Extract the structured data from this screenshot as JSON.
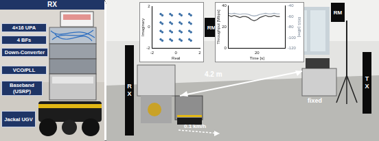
{
  "left_panel": {
    "title": "RX",
    "labels": [
      "4×16 UPA",
      "4 BFs",
      "Down-Converter",
      "VCO/PLL",
      "Baseband (USRP)",
      "Jackal UGV"
    ]
  },
  "right_panel": {
    "rx": "RX",
    "tx": "TX",
    "rm": [
      "RM",
      "RM"
    ],
    "fixed": "fixed",
    "distance": "4.2 m",
    "speed": "0.1 km/h"
  },
  "chart_data": [
    {
      "type": "scatter",
      "x_label": "Real",
      "y_label": "Imaginary",
      "x": [
        -1.28,
        -1.14,
        -1.28,
        -1.14,
        -1.28,
        -1.14,
        -1.28,
        -1.14,
        -0.48,
        -0.34,
        -0.48,
        -0.34,
        -0.48,
        -0.34,
        -0.48,
        -0.34,
        0.32,
        0.46,
        0.32,
        0.46,
        0.32,
        0.46,
        0.32,
        0.46,
        1.12,
        1.26,
        1.12,
        1.26,
        1.12,
        1.26,
        1.12,
        1.26
      ],
      "values": [
        -1.15,
        -1.27,
        -0.35,
        -0.47,
        0.45,
        0.33,
        1.25,
        1.13,
        -1.15,
        -1.27,
        -0.35,
        -0.47,
        0.45,
        0.33,
        1.25,
        1.13,
        -1.15,
        -1.27,
        -0.35,
        -0.47,
        0.45,
        0.33,
        1.25,
        1.13,
        -1.15,
        -1.27,
        -0.35,
        -0.47,
        0.45,
        0.33,
        1.25,
        1.13
      ],
      "color": "#3a6ea5",
      "marker": "circle",
      "xlim": [
        -2,
        2
      ],
      "ylim": [
        -2,
        2
      ],
      "xticks": [
        -2,
        0,
        2
      ],
      "yticks": [
        -2,
        0,
        2
      ]
    },
    {
      "type": "line",
      "x_label": "Time [s]",
      "y_label": "Throughput [Mbps]",
      "y2_label": "RSS [dBm]",
      "x": [
        0,
        2,
        4,
        6,
        8,
        10,
        12,
        14,
        16,
        18,
        20,
        22,
        24,
        26,
        28,
        30,
        32,
        34,
        36
      ],
      "series": [
        {
          "color": "#404040",
          "values": [
            31,
            30,
            31,
            30,
            29,
            30,
            30,
            29,
            27,
            26,
            27,
            29,
            30,
            31,
            30,
            30,
            31,
            30,
            30
          ]
        },
        {
          "color": "#9aa8b8",
          "axis": "y2",
          "values": [
            -54,
            -55,
            -54,
            -55,
            -56,
            -55,
            -55,
            -56,
            -58,
            -59,
            -58,
            -56,
            -55,
            -54,
            -55,
            -55,
            -54,
            -55,
            -55
          ]
        }
      ],
      "xlim": [
        0,
        40
      ],
      "xticks": [
        20
      ],
      "ylim": [
        0,
        40
      ],
      "yticks": [
        0,
        20,
        40
      ],
      "y2lim": [
        -120,
        -40
      ],
      "y2ticks": [
        -120,
        -100,
        -80,
        -60,
        -40
      ]
    }
  ]
}
